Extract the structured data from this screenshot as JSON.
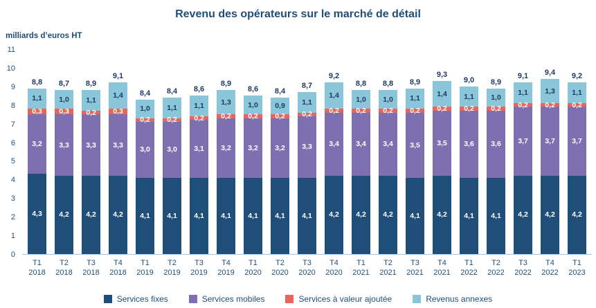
{
  "chart_data": {
    "type": "bar",
    "stacked": true,
    "title": "Revenu des opérateurs sur le marché de détail",
    "unit_label": "milliards d’euros HT",
    "ylim": [
      0,
      11
    ],
    "grid": false,
    "legend_position": "bottom",
    "categories": [
      {
        "quarter": "T1",
        "year": "2018"
      },
      {
        "quarter": "T2",
        "year": "2018"
      },
      {
        "quarter": "T3",
        "year": "2018"
      },
      {
        "quarter": "T4",
        "year": "2018"
      },
      {
        "quarter": "T1",
        "year": "2019"
      },
      {
        "quarter": "T2",
        "year": "2019"
      },
      {
        "quarter": "T3",
        "year": "2019"
      },
      {
        "quarter": "T4",
        "year": "2019"
      },
      {
        "quarter": "T1",
        "year": "2020"
      },
      {
        "quarter": "T2",
        "year": "2020"
      },
      {
        "quarter": "T3",
        "year": "2020"
      },
      {
        "quarter": "T4",
        "year": "2020"
      },
      {
        "quarter": "T1",
        "year": "2021"
      },
      {
        "quarter": "T2",
        "year": "2021"
      },
      {
        "quarter": "T3",
        "year": "2021"
      },
      {
        "quarter": "T4",
        "year": "2021"
      },
      {
        "quarter": "T1",
        "year": "2022"
      },
      {
        "quarter": "T2",
        "year": "2022"
      },
      {
        "quarter": "T3",
        "year": "2022"
      },
      {
        "quarter": "T4",
        "year": "2022"
      },
      {
        "quarter": "T1",
        "year": "2023"
      }
    ],
    "series": [
      {
        "key": "services-fixes",
        "name": "Services fixes",
        "color": "#1F4E79",
        "label_color": "#FFFFFF",
        "values": [
          4.3,
          4.2,
          4.2,
          4.2,
          4.1,
          4.1,
          4.1,
          4.1,
          4.1,
          4.1,
          4.1,
          4.2,
          4.2,
          4.2,
          4.1,
          4.2,
          4.1,
          4.1,
          4.2,
          4.2,
          4.2
        ]
      },
      {
        "key": "services-mobiles",
        "name": "Services mobiles",
        "color": "#7E6FB0",
        "label_color": "#FFFFFF",
        "values": [
          3.2,
          3.3,
          3.3,
          3.3,
          3.0,
          3.0,
          3.1,
          3.2,
          3.2,
          3.2,
          3.3,
          3.4,
          3.4,
          3.4,
          3.5,
          3.5,
          3.6,
          3.6,
          3.7,
          3.7,
          3.7
        ]
      },
      {
        "key": "services-valeur-ajoutee",
        "name": "Services à valeur ajoutée",
        "color": "#E8645C",
        "label_color": "#FFFFFF",
        "values": [
          0.3,
          0.3,
          0.2,
          0.3,
          0.2,
          0.2,
          0.2,
          0.2,
          0.2,
          0.2,
          0.2,
          0.2,
          0.2,
          0.2,
          0.2,
          0.2,
          0.2,
          0.2,
          0.2,
          0.2,
          0.2
        ]
      },
      {
        "key": "revenus-annexes",
        "name": "Revenus annexes",
        "color": "#8AC6D9",
        "label_color": "#1F3864",
        "values": [
          1.1,
          1.0,
          1.1,
          1.4,
          1.0,
          1.1,
          1.1,
          1.3,
          1.0,
          0.9,
          1.1,
          1.4,
          1.0,
          1.0,
          1.1,
          1.4,
          1.1,
          1.0,
          1.1,
          1.3,
          1.1
        ]
      }
    ],
    "totals": [
      8.8,
      8.7,
      8.9,
      9.1,
      8.4,
      8.4,
      8.6,
      8.9,
      8.6,
      8.4,
      8.7,
      9.2,
      8.8,
      8.8,
      8.9,
      9.3,
      9.0,
      8.9,
      9.1,
      9.4,
      9.2
    ]
  }
}
